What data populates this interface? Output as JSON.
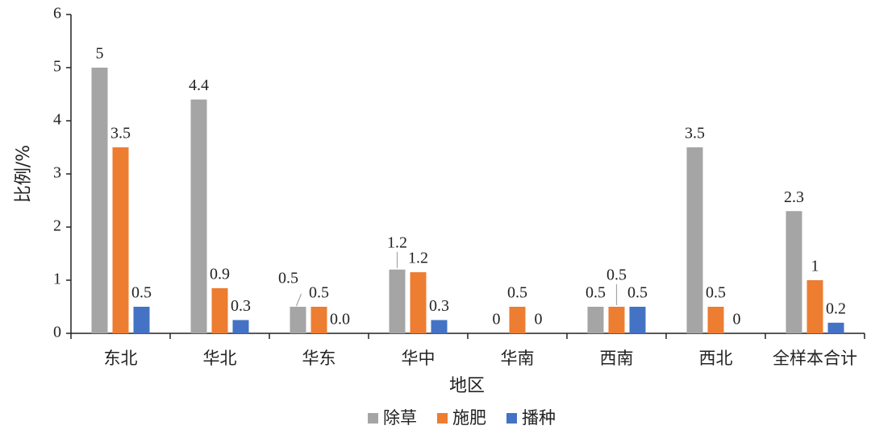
{
  "chart_data": {
    "type": "bar",
    "ylabel": "比例/%",
    "xlabel": "地区",
    "ylim": [
      0,
      6
    ],
    "yticks": [
      "0",
      "1",
      "2",
      "3",
      "4",
      "5",
      "6"
    ],
    "grid": false,
    "legend_position": "bottom",
    "categories": [
      "东北",
      "华北",
      "华东",
      "华中",
      "华南",
      "西南",
      "西北",
      "全样本合计"
    ],
    "series": [
      {
        "name": "除草",
        "color": "#a5a5a5",
        "values": [
          5.0,
          4.4,
          0.5,
          1.2,
          0.0,
          0.5,
          3.5,
          2.3
        ],
        "labels": [
          "5",
          "4.4",
          "0.5",
          "1.2",
          "0",
          "0.5",
          "3.5",
          "2.3"
        ]
      },
      {
        "name": "施肥",
        "color": "#ed7d31",
        "values": [
          3.5,
          0.85,
          0.5,
          1.15,
          0.5,
          0.5,
          0.5,
          1.0
        ],
        "labels": [
          "3.5",
          "0.9",
          "0.5",
          "1.2",
          "0.5",
          "0.5",
          "0.5",
          "1"
        ]
      },
      {
        "name": "播种",
        "color": "#4472c4",
        "values": [
          0.5,
          0.25,
          0.0,
          0.25,
          0.0,
          0.5,
          0.0,
          0.2
        ],
        "labels": [
          "0.5",
          "0.3",
          "0.0",
          "0.3",
          "0",
          "0.5",
          "0",
          "0.2"
        ]
      }
    ]
  }
}
